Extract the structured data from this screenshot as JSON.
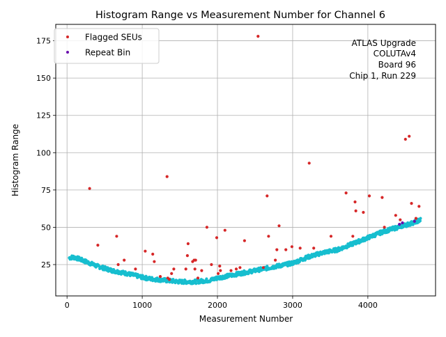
{
  "chart_data": {
    "type": "scatter",
    "title": "Histogram Range vs Measurement Number for Channel 6",
    "xlabel": "Measurement Number",
    "ylabel": "Histogram Range",
    "xlim": [
      -150,
      4900
    ],
    "ylim": [
      4,
      186
    ],
    "xticks": [
      0,
      1000,
      2000,
      3000,
      4000
    ],
    "yticks": [
      25,
      50,
      75,
      100,
      125,
      150,
      175
    ],
    "grid": true,
    "legend": {
      "placement": "top-left",
      "entries": [
        {
          "label": "Flagged SEUs",
          "color": "#d62728"
        },
        {
          "label": "Repeat Bin",
          "color": "#6a0dad"
        }
      ]
    },
    "annotation_lines": [
      "ATLAS Upgrade",
      "COLUTAv4",
      "Board 96",
      "Chip 1, Run 229"
    ],
    "colors": {
      "base": "#17becf",
      "flagged": "#d62728",
      "repeat": "#6a0dad"
    },
    "baseline_curve": {
      "description": "dense series of points, one per measurement, following this trend",
      "x": [
        30,
        80,
        150,
        250,
        400,
        600,
        800,
        1000,
        1100,
        1300,
        1500,
        1700,
        1900,
        2000,
        2100,
        2200,
        2400,
        2600,
        2800,
        3000,
        3200,
        3400,
        3600,
        3800,
        4000,
        4200,
        4400,
        4600,
        4700
      ],
      "y": [
        29.5,
        30,
        29,
        27,
        24,
        21,
        19,
        16.5,
        15.5,
        14.5,
        13.5,
        13.5,
        14.5,
        16,
        17,
        18,
        20,
        22,
        24,
        26,
        30,
        33,
        35,
        39,
        43,
        47,
        50,
        53,
        55
      ],
      "step": 5
    },
    "flagged_seus": {
      "x": [
        300,
        410,
        660,
        680,
        760,
        910,
        1040,
        1140,
        1160,
        1240,
        1330,
        1340,
        1360,
        1390,
        1420,
        1580,
        1600,
        1610,
        1670,
        1690,
        1700,
        1710,
        1740,
        1790,
        1860,
        1920,
        1990,
        2010,
        2030,
        2040,
        2100,
        2180,
        2250,
        2300,
        2360,
        2540,
        2610,
        2660,
        2680,
        2770,
        2790,
        2820,
        2910,
        2990,
        3100,
        3220,
        3280,
        3510,
        3710,
        3800,
        3830,
        3840,
        3940,
        4020,
        4190,
        4220,
        4370,
        4430,
        4500,
        4550,
        4580,
        4640,
        4680
      ],
      "y": [
        76,
        38,
        44,
        25,
        28,
        22,
        34,
        32,
        27,
        17,
        84,
        16,
        15,
        19,
        22,
        22,
        31,
        39,
        27,
        28,
        22,
        28,
        16,
        21,
        50,
        25,
        43,
        19,
        24,
        21,
        48,
        21,
        22,
        23,
        41,
        178,
        23,
        71,
        44,
        28,
        35,
        51,
        35,
        37,
        36,
        93,
        36,
        44,
        73,
        44,
        67,
        61,
        60,
        71,
        70,
        50,
        58,
        55,
        109,
        111,
        66,
        56,
        64
      ]
    },
    "repeat_bin": {
      "x": [
        4420,
        4460,
        4620
      ],
      "y": [
        52,
        53,
        54
      ]
    }
  }
}
